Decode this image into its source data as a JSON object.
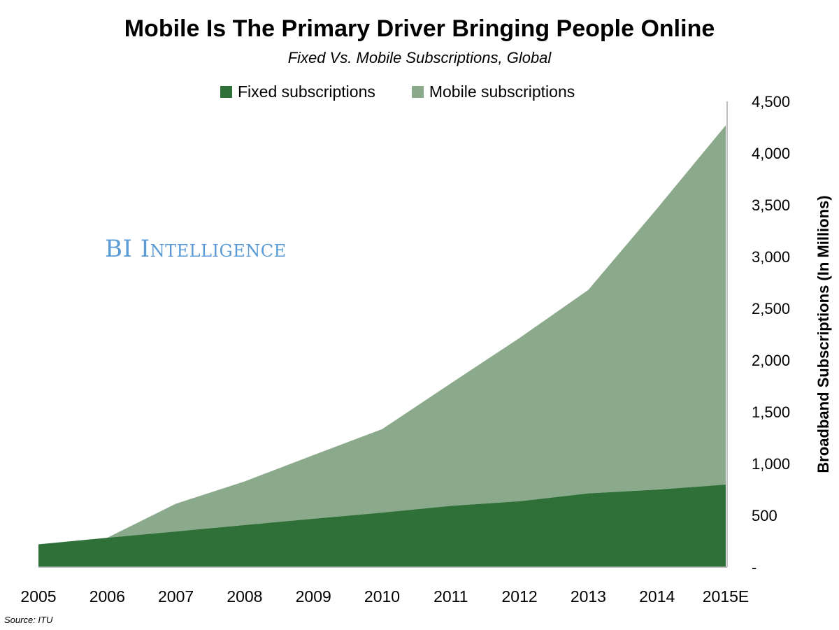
{
  "chart_data": {
    "type": "area",
    "stacked": true,
    "title": "Mobile Is The Primary Driver Bringing People Online",
    "subtitle": "Fixed Vs. Mobile Subscriptions, Global",
    "xlabel": "",
    "ylabel": "Broadband Subscriptions (In Millions)",
    "categories": [
      "2005",
      "2006",
      "2007",
      "2008",
      "2009",
      "2010",
      "2011",
      "2012",
      "2013",
      "2014",
      "2015E"
    ],
    "series": [
      {
        "name": "Fixed subscriptions",
        "color": "#2E7037",
        "values": [
          220,
          283,
          344,
          406,
          467,
          526,
          591,
          636,
          712,
          748,
          797
        ]
      },
      {
        "name": "Mobile subscriptions",
        "color": "#8BA98B",
        "values": [
          0,
          0,
          268,
          422,
          615,
          807,
          1184,
          1578,
          1966,
          2716,
          3472
        ]
      }
    ],
    "ylim": [
      0,
      4500
    ],
    "yticks": [
      0,
      500,
      1000,
      1500,
      2000,
      2500,
      3000,
      3500,
      4000,
      4500
    ],
    "ytick_labels": [
      "-",
      "500",
      "1,000",
      "1,500",
      "2,000",
      "2,500",
      "3,000",
      "3,500",
      "4,000",
      "4,500"
    ],
    "y_axis_side": "right",
    "grid": false,
    "legend_position": "top"
  },
  "watermark": "BI Intelligence",
  "source": "Source: ITU"
}
